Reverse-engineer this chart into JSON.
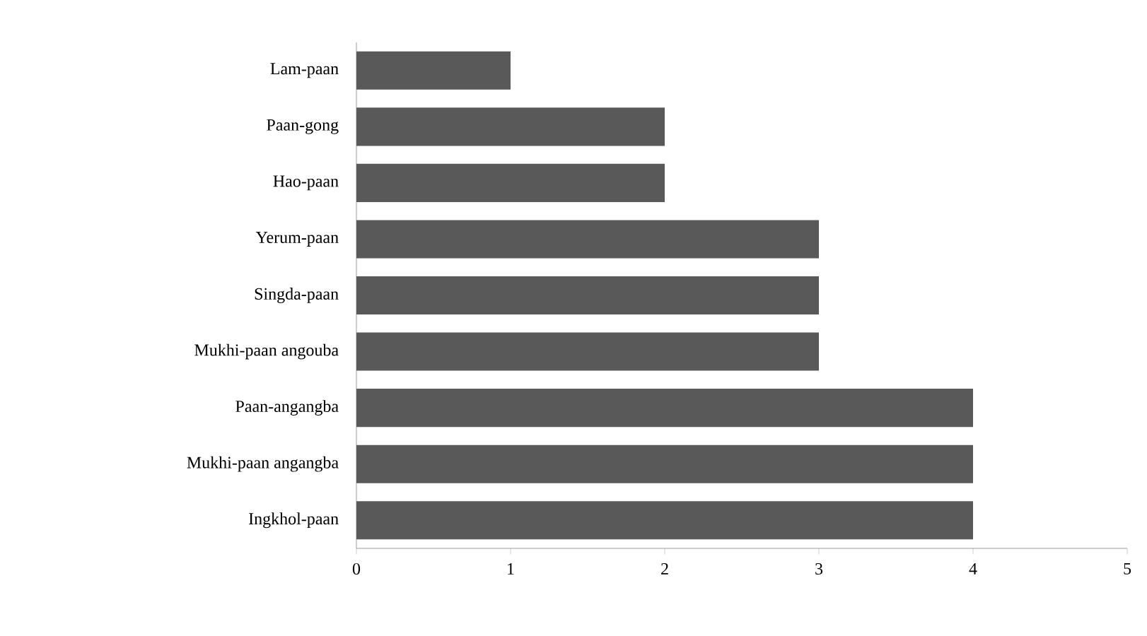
{
  "chart_data": {
    "type": "bar",
    "orientation": "horizontal",
    "categories": [
      "Lam-paan",
      "Paan-gong",
      "Hao-paan",
      "Yerum-paan",
      "Singda-paan",
      "Mukhi-paan angouba",
      "Paan-angangba",
      "Mukhi-paan angangba",
      "Ingkhol-paan"
    ],
    "values": [
      1,
      2,
      2,
      3,
      3,
      3,
      4,
      4,
      4
    ],
    "color": "#595959",
    "xlim": [
      0,
      5
    ],
    "xticks": [
      0,
      1,
      2,
      3,
      4,
      5
    ]
  }
}
